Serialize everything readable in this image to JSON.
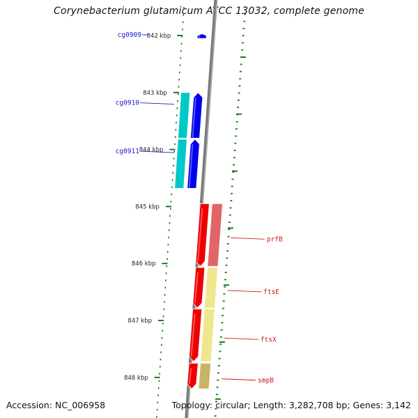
{
  "title": "Corynebacterium glutamicum ATCC 13032, complete genome",
  "footer": {
    "accession": "Accession: NC_006958",
    "summary": "Topology: circular; Length: 3,282,708 bp; Genes: 3,142"
  },
  "scale": {
    "unit": "kbp",
    "ticks": [
      {
        "label": "842 kbp",
        "kbp": 842
      },
      {
        "label": "843 kbp",
        "kbp": 843
      },
      {
        "label": "844 kbp",
        "kbp": 844
      },
      {
        "label": "845 kbp",
        "kbp": 845
      },
      {
        "label": "846 kbp",
        "kbp": 846
      },
      {
        "label": "847 kbp",
        "kbp": 847
      },
      {
        "label": "848 kbp",
        "kbp": 848
      }
    ]
  },
  "genes": [
    {
      "name": "cg0909",
      "strand": "reverse",
      "start_kbp": 841.97,
      "end_kbp": 842.05,
      "color": "#0000ee",
      "label_color": "#1a1acc",
      "has_cog": false
    },
    {
      "name": "cg0910",
      "strand": "reverse",
      "start_kbp": 843.0,
      "end_kbp": 843.8,
      "color": "#0000ee",
      "label_color": "#1a1acc",
      "has_cog": true,
      "cog_color": "#00c8c8"
    },
    {
      "name": "cg0911",
      "strand": "reverse",
      "start_kbp": 843.82,
      "end_kbp": 844.68,
      "color": "#0000ee",
      "label_color": "#1a1acc",
      "has_cog": true,
      "cog_color": "#00c8c8"
    },
    {
      "name": "prfB",
      "strand": "forward",
      "start_kbp": 844.95,
      "end_kbp": 846.05,
      "color": "#ee0000",
      "label_color": "#cc1a1a",
      "has_cog": true,
      "cog_color": "#e06666"
    },
    {
      "name": "ftsE",
      "strand": "forward",
      "start_kbp": 846.07,
      "end_kbp": 846.78,
      "color": "#ee0000",
      "label_color": "#cc1a1a",
      "has_cog": true,
      "cog_color": "#f0e68c"
    },
    {
      "name": "ftsX",
      "strand": "forward",
      "start_kbp": 846.8,
      "end_kbp": 847.72,
      "color": "#ee0000",
      "label_color": "#cc1a1a",
      "has_cog": true,
      "cog_color": "#f0e68c"
    },
    {
      "name": "smpB",
      "strand": "forward",
      "start_kbp": 847.75,
      "end_kbp": 848.2,
      "color": "#ee0000",
      "label_color": "#cc1a1a",
      "has_cog": true,
      "cog_color": "#c8b464"
    }
  ],
  "colors": {
    "backbone": "#7a7a7a",
    "tick": "#1a7a1a",
    "tick_label": "#222222"
  }
}
